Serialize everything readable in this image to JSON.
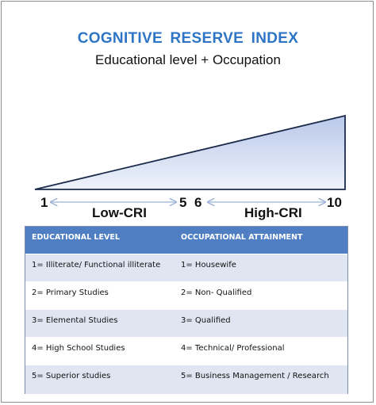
{
  "title": "COGNITIVE  RESERVE INDEX",
  "subtitle": "Educational level + Occupation",
  "scale": {
    "start": "1",
    "low_end": "5",
    "high_start": "6",
    "end": "10",
    "low_label": "Low-CRI",
    "high_label": "High-CRI"
  },
  "colors": {
    "title": "#2e75c5",
    "wedge_fill_top": "#b9c8ea",
    "wedge_fill_bottom": "#e9eef8",
    "arrow": "#9db4d6",
    "header": "#4f7fc2",
    "row_band": "#dfe6f2"
  },
  "table": {
    "headers": [
      "EDUCATIONAL LEVEL",
      "OCCUPATIONAL ATTAINMENT"
    ],
    "rows": [
      [
        "1= Illiterate/ Functional illiterate",
        "1= Housewife"
      ],
      [
        "2= Primary Studies",
        "2= Non- Qualified"
      ],
      [
        "3= Elemental Studies",
        "3= Qualified"
      ],
      [
        "4= High School Studies",
        "4= Technical/ Professional"
      ],
      [
        "5= Superior studies",
        "5= Business Management / Research"
      ]
    ]
  }
}
